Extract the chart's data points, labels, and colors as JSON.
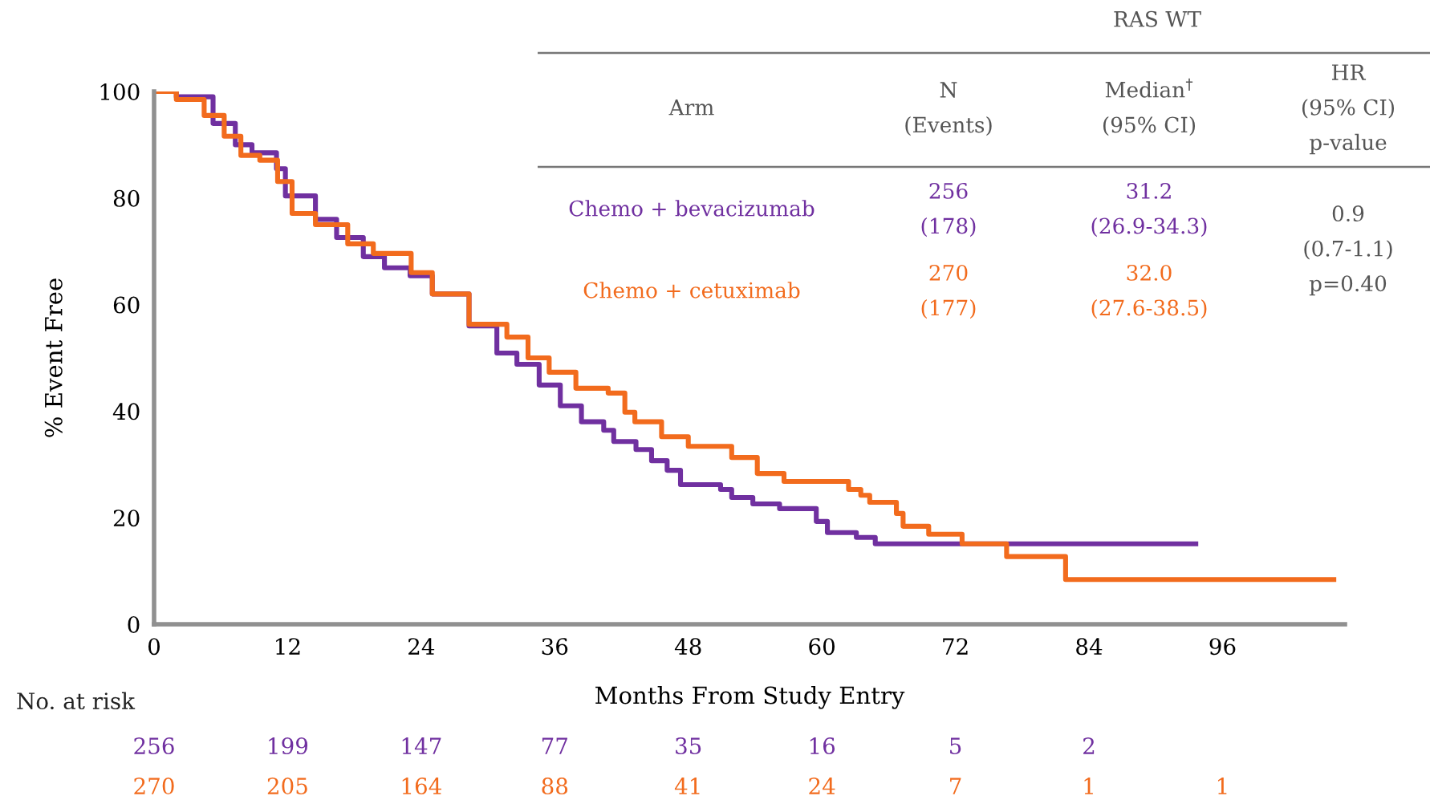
{
  "chart_data": {
    "type": "step",
    "xlabel": "Months From Study Entry",
    "ylabel": "% Event Free",
    "xlim": [
      0,
      107
    ],
    "ylim": [
      0,
      100
    ],
    "xticks": [
      0,
      12,
      24,
      36,
      48,
      60,
      72,
      84,
      96
    ],
    "yticks": [
      0,
      20,
      40,
      60,
      80,
      100
    ],
    "grid": false,
    "legend": false,
    "series": [
      {
        "name": "Chemo + bevacizumab",
        "color": "#7030a0",
        "x": [
          0,
          2,
          5.3,
          7.3,
          8.8,
          11,
          11.8,
          14.5,
          16.4,
          18.8,
          20.7,
          23,
          25,
          28.3,
          30.8,
          32.6,
          34.6,
          36.5,
          38.4,
          40.4,
          41.3,
          43.3,
          44.7,
          46.1,
          47.3,
          50.9,
          51.9,
          53.8,
          56.2,
          59.5,
          60.5,
          63.1,
          64.8,
          93.6
        ],
        "values": [
          100,
          99,
          94,
          90,
          88.5,
          85.5,
          80.4,
          76,
          72.6,
          69,
          66.9,
          65.4,
          62,
          56,
          50.9,
          48.8,
          44.9,
          41,
          38,
          36.4,
          34.3,
          32.8,
          30.7,
          28.9,
          26.2,
          25.3,
          23.8,
          22.6,
          21.7,
          19.3,
          17.2,
          16.3,
          15.1,
          15.1
        ]
      },
      {
        "name": "Chemo + cetuximab",
        "color": "#f26b1d",
        "x": [
          0,
          2,
          4.5,
          6.3,
          7.8,
          9.5,
          11.1,
          12.4,
          14.5,
          17.4,
          19.7,
          23.1,
          25,
          28.3,
          31.7,
          33.6,
          35.5,
          37.9,
          40.8,
          42.3,
          43.2,
          45.6,
          48,
          51.9,
          54.2,
          56.6,
          62.4,
          63.5,
          64.3,
          66.7,
          67.3,
          69.6,
          72.6,
          76.6,
          81.9,
          106
        ],
        "values": [
          100,
          98.5,
          95.5,
          91.6,
          88,
          87.1,
          83.1,
          77.1,
          75,
          71.4,
          69.6,
          66,
          62,
          56.3,
          53.9,
          50,
          47.3,
          44.3,
          43.4,
          39.8,
          38,
          35.2,
          33.4,
          31.3,
          28.3,
          26.8,
          25.3,
          24.2,
          22.9,
          20.8,
          18.4,
          16.9,
          15.1,
          12.7,
          8.4,
          8.4
        ]
      }
    ],
    "annotations": [
      "RAS WT",
      "Arm",
      "N\n(Events)",
      "Median$^{†}$\n(95% CI)",
      "HR\n(95% CI)\np-value",
      "256\n(178)",
      "31.2\n(26.9-34.3)",
      "270\n(177)",
      "32.0\n(27.6-38.5)",
      "0.9\n(0.7-1.1)\np=0.40",
      "No. at risk",
      "256",
      "199",
      "147",
      "77",
      "35",
      "16",
      "5",
      "2",
      "270",
      "205",
      "164",
      "88",
      "41",
      "24",
      "7",
      "1",
      "1"
    ]
  }
}
